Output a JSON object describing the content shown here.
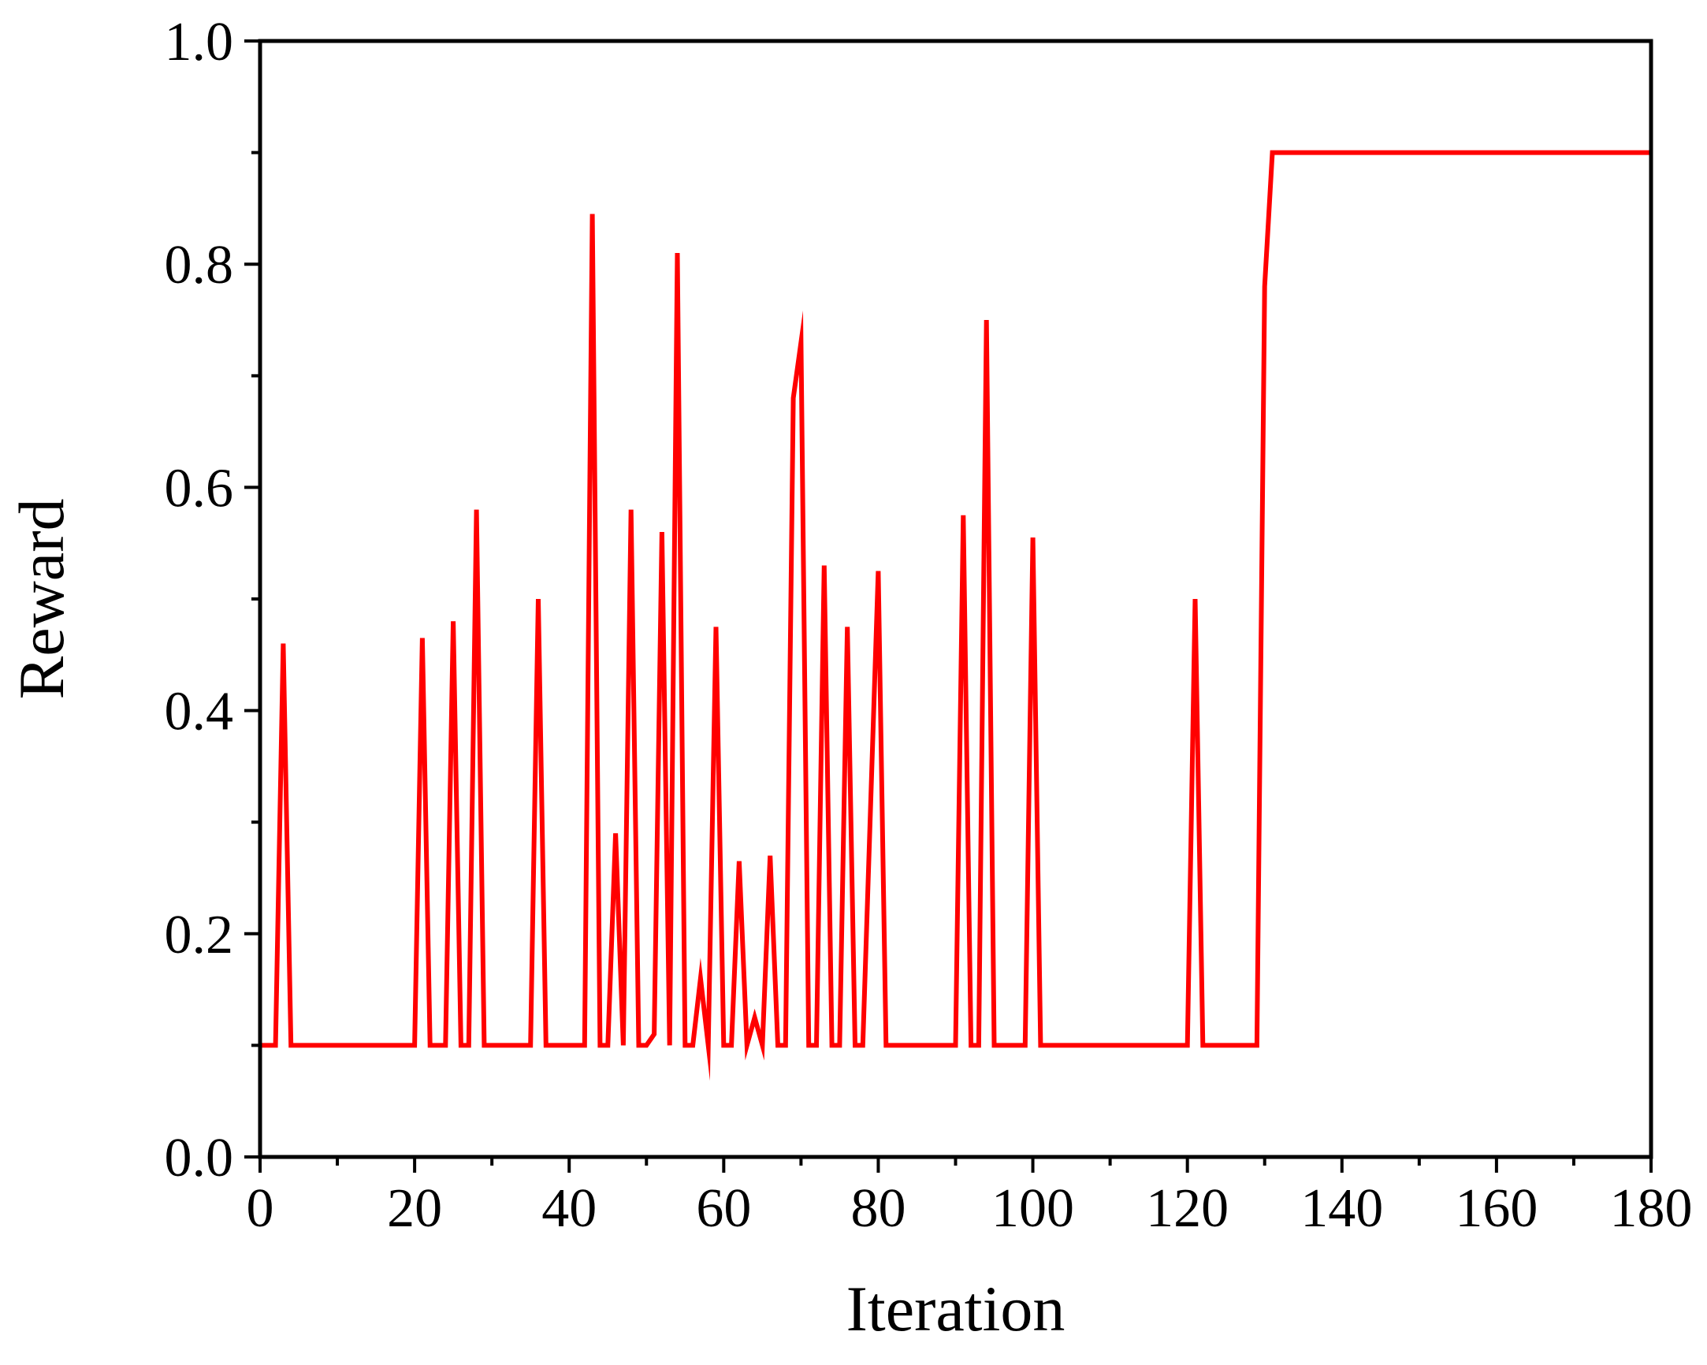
{
  "chart_data": {
    "type": "line",
    "xlabel": "Iteration",
    "ylabel": "Reward",
    "xlim": [
      0,
      180
    ],
    "ylim": [
      0.0,
      1.0
    ],
    "x_ticks": [
      0,
      20,
      40,
      60,
      80,
      100,
      120,
      140,
      160,
      180
    ],
    "x_tick_labels": [
      "0",
      "20",
      "40",
      "60",
      "80",
      "100",
      "120",
      "140",
      "160",
      "180"
    ],
    "x_minor_step": 10,
    "y_ticks": [
      0.0,
      0.2,
      0.4,
      0.6,
      0.8,
      1.0
    ],
    "y_tick_labels": [
      "0.0",
      "0.2",
      "0.4",
      "0.6",
      "0.8",
      "1.0"
    ],
    "y_minor_step": 0.1,
    "grid": false,
    "legend": "none",
    "line_color": "#ff0000",
    "series": [
      {
        "x": [
          0,
          2,
          3,
          4,
          5,
          20,
          21,
          22,
          24,
          25,
          26,
          27,
          28,
          29,
          30,
          35,
          36,
          37,
          42,
          43,
          44,
          45,
          46,
          47,
          48,
          49,
          50,
          51,
          52,
          53,
          54,
          55,
          56,
          57,
          58,
          59,
          60,
          61,
          62,
          63,
          64,
          65,
          66,
          67,
          68,
          69,
          70,
          71,
          72,
          73,
          74,
          75,
          76,
          77,
          78,
          80,
          81,
          90,
          91,
          92,
          93,
          94,
          95,
          99,
          100,
          101,
          120,
          121,
          122,
          129,
          130,
          131,
          180
        ],
        "y": [
          0.1,
          0.1,
          0.46,
          0.1,
          0.1,
          0.1,
          0.465,
          0.1,
          0.1,
          0.48,
          0.1,
          0.1,
          0.58,
          0.1,
          0.1,
          0.1,
          0.5,
          0.1,
          0.1,
          0.845,
          0.1,
          0.1,
          0.29,
          0.1,
          0.58,
          0.1,
          0.1,
          0.11,
          0.56,
          0.1,
          0.81,
          0.1,
          0.1,
          0.16,
          0.1,
          0.475,
          0.1,
          0.1,
          0.265,
          0.1,
          0.125,
          0.1,
          0.27,
          0.1,
          0.1,
          0.68,
          0.73,
          0.1,
          0.1,
          0.53,
          0.1,
          0.1,
          0.475,
          0.1,
          0.1,
          0.525,
          0.1,
          0.1,
          0.575,
          0.1,
          0.1,
          0.75,
          0.1,
          0.1,
          0.555,
          0.1,
          0.1,
          0.5,
          0.1,
          0.1,
          0.78,
          0.9,
          0.9
        ]
      }
    ]
  }
}
